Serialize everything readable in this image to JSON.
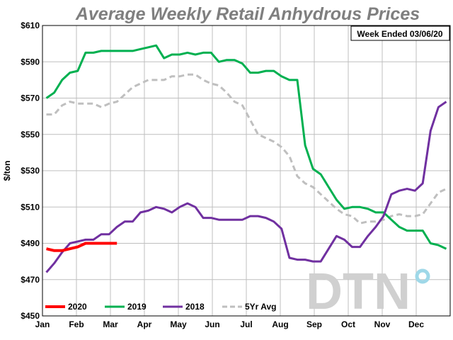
{
  "chart_data": {
    "type": "line",
    "title": "Average Weekly Retail Anhydrous Prices",
    "note": "Week Ended 03/06/20",
    "ylabel": "$/ton",
    "xlabel": "",
    "ylim": [
      450,
      610
    ],
    "yticks": [
      "$450",
      "$470",
      "$490",
      "$510",
      "$530",
      "$550",
      "$570",
      "$590",
      "$610"
    ],
    "xticks": [
      "Jan",
      "Feb",
      "Mar",
      "Apr",
      "May",
      "Jun",
      "Jul",
      "Aug",
      "Sep",
      "Oct",
      "Nov",
      "Dec"
    ],
    "grid": true,
    "legend_position": "bottom-left",
    "logo": "DTN",
    "series": [
      {
        "name": "2020",
        "color": "#ff0000",
        "dash": "solid",
        "weeks": [
          1,
          2,
          3,
          4,
          5,
          6,
          7,
          8,
          9,
          10
        ],
        "values": [
          487,
          486,
          486,
          487,
          488,
          490,
          490,
          490,
          490,
          490
        ]
      },
      {
        "name": "2019",
        "color": "#00b050",
        "dash": "solid",
        "weeks": [
          1,
          2,
          3,
          4,
          5,
          6,
          7,
          8,
          9,
          10,
          11,
          12,
          13,
          14,
          15,
          16,
          17,
          18,
          19,
          20,
          21,
          22,
          23,
          24,
          25,
          26,
          27,
          28,
          29,
          30,
          31,
          32,
          33,
          34,
          35,
          36,
          37,
          38,
          39,
          40,
          41,
          42,
          43,
          44,
          45,
          46,
          47,
          48,
          49,
          50,
          51,
          52
        ],
        "values": [
          570,
          573,
          580,
          584,
          585,
          595,
          595,
          596,
          596,
          596,
          596,
          596,
          597,
          598,
          599,
          592,
          594,
          594,
          595,
          594,
          595,
          595,
          590,
          591,
          591,
          589,
          584,
          584,
          585,
          585,
          582,
          580,
          580,
          544,
          531,
          528,
          521,
          514,
          509,
          510,
          510,
          509,
          507,
          507,
          503,
          499,
          497,
          497,
          497,
          490,
          489,
          487
        ]
      },
      {
        "name": "2018",
        "color": "#7030a0",
        "dash": "solid",
        "weeks": [
          1,
          2,
          3,
          4,
          5,
          6,
          7,
          8,
          9,
          10,
          11,
          12,
          13,
          14,
          15,
          16,
          17,
          18,
          19,
          20,
          21,
          22,
          23,
          24,
          25,
          26,
          27,
          28,
          29,
          30,
          31,
          32,
          33,
          34,
          35,
          36,
          37,
          38,
          39,
          40,
          41,
          42,
          43,
          44,
          45,
          46,
          47,
          48,
          49,
          50,
          51,
          52
        ],
        "values": [
          474,
          479,
          485,
          490,
          491,
          492,
          492,
          495,
          495,
          499,
          502,
          502,
          507,
          508,
          510,
          509,
          507,
          510,
          512,
          510,
          504,
          504,
          503,
          503,
          503,
          503,
          505,
          505,
          504,
          502,
          498,
          482,
          481,
          481,
          480,
          480,
          487,
          494,
          492,
          488,
          488,
          494,
          499,
          505,
          517,
          519,
          520,
          519,
          523,
          552,
          565,
          568
        ]
      },
      {
        "name": "5Yr Avg",
        "color": "#bfbfbf",
        "dash": "dashed",
        "weeks": [
          1,
          2,
          3,
          4,
          5,
          6,
          7,
          8,
          9,
          10,
          11,
          12,
          13,
          14,
          15,
          16,
          17,
          18,
          19,
          20,
          21,
          22,
          23,
          24,
          25,
          26,
          27,
          28,
          29,
          30,
          31,
          32,
          33,
          34,
          35,
          36,
          37,
          38,
          39,
          40,
          41,
          42,
          43,
          44,
          45,
          46,
          47,
          48,
          49,
          50,
          51,
          52
        ],
        "values": [
          561,
          561,
          566,
          568,
          567,
          567,
          567,
          565,
          567,
          568,
          572,
          576,
          578,
          580,
          580,
          580,
          582,
          582,
          583,
          583,
          580,
          578,
          577,
          573,
          568,
          566,
          558,
          550,
          548,
          546,
          543,
          538,
          527,
          523,
          521,
          517,
          513,
          509,
          506,
          505,
          501,
          502,
          502,
          503,
          505,
          506,
          505,
          505,
          506,
          512,
          518,
          520
        ]
      }
    ]
  }
}
